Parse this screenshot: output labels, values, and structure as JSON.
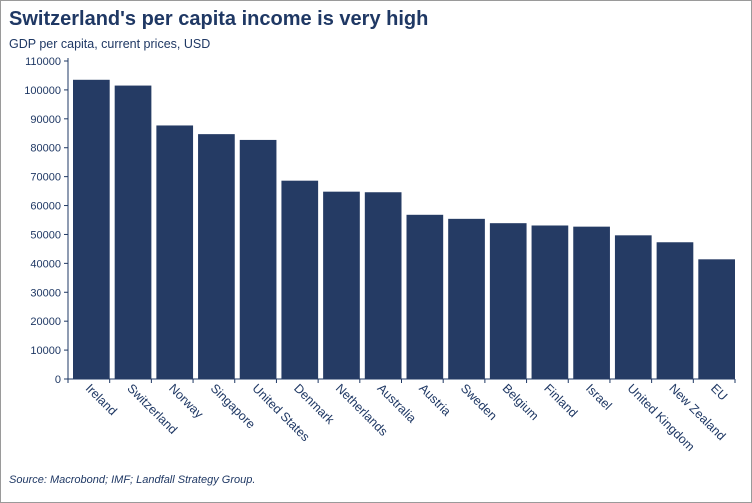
{
  "title": "Switzerland's per capita income is very high",
  "subtitle": "GDP per capita, current prices, USD",
  "source": "Source: Macrobond; IMF; Landfall Strategy Group.",
  "colors": {
    "bar": "#253b64",
    "text": "#1f3864",
    "axis": "#1f3864"
  },
  "chart_data": {
    "type": "bar",
    "title": "Switzerland's per capita income is very high",
    "ylabel": "",
    "xlabel": "",
    "ylim": [
      0,
      110000
    ],
    "yticks": [
      0,
      10000,
      20000,
      30000,
      40000,
      50000,
      60000,
      70000,
      80000,
      90000,
      100000,
      110000
    ],
    "grid": false,
    "legend": "none",
    "categories": [
      "Ireland",
      "Switzerland",
      "Norway",
      "Singapore",
      "United States",
      "Denmark",
      "Netherlands",
      "Australia",
      "Austria",
      "Sweden",
      "Belgium",
      "Finland",
      "Israel",
      "United Kingdom",
      "New Zealand",
      "EU"
    ],
    "values": [
      103500,
      101500,
      87700,
      84700,
      82700,
      68600,
      64800,
      64600,
      56800,
      55400,
      53900,
      53100,
      52700,
      49700,
      47300,
      41400
    ]
  }
}
